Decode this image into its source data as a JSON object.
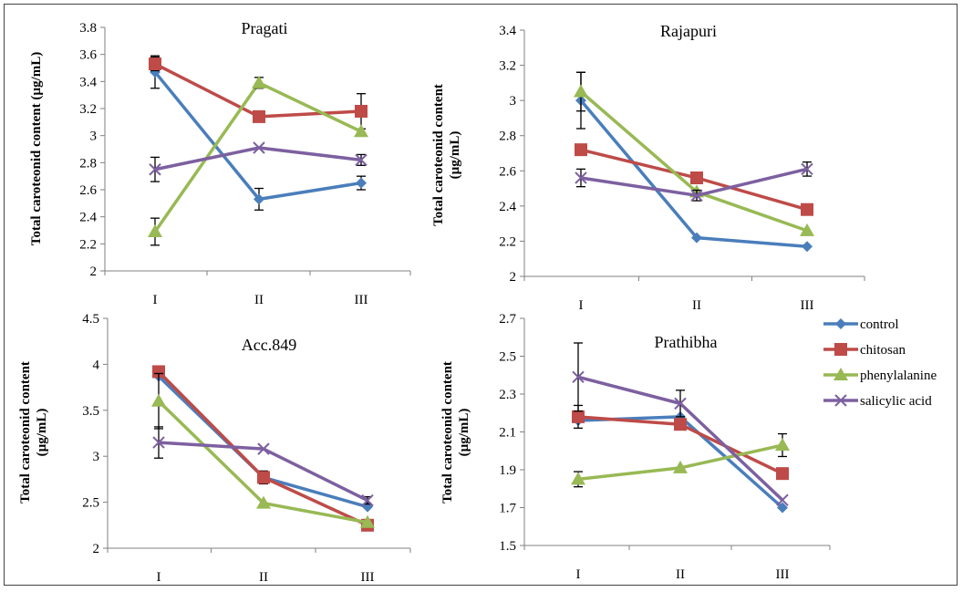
{
  "colors": {
    "control": "#4a7ebb",
    "chitosan": "#be4b48",
    "phenylalanine": "#98b954",
    "salicylic acid": "#7d60a0",
    "axis": "#808080",
    "errorbar": "#000000"
  },
  "legend": {
    "position": "right",
    "items": [
      "control",
      "chitosan",
      "phenylalanine",
      "salicylic acid"
    ]
  },
  "chart_data": [
    {
      "type": "line",
      "title": "Pragati",
      "ylabel": "Total caroteonid content (µg/mL)",
      "categories": [
        "I",
        "II",
        "III"
      ],
      "ylim": [
        2,
        3.8
      ],
      "yticks": [
        "2",
        "2.2",
        "2.4",
        "2.6",
        "2.8",
        "3",
        "3.2",
        "3.4",
        "3.6",
        "3.8"
      ],
      "series": [
        {
          "name": "control",
          "marker": "diamond",
          "values": [
            3.47,
            2.53,
            2.65
          ],
          "errors": [
            0.12,
            0.08,
            0.05
          ]
        },
        {
          "name": "chitosan",
          "marker": "square",
          "values": [
            3.53,
            3.14,
            3.18
          ],
          "errors": [
            0.05,
            0.0,
            0.13
          ]
        },
        {
          "name": "phenylalanine",
          "marker": "triangle",
          "values": [
            2.29,
            3.39,
            3.03
          ],
          "errors": [
            0.1,
            0.04,
            0.0
          ]
        },
        {
          "name": "salicylic acid",
          "marker": "x",
          "values": [
            2.75,
            2.91,
            2.82
          ],
          "errors": [
            0.09,
            0.0,
            0.04
          ]
        }
      ]
    },
    {
      "type": "line",
      "title": "Rajapuri",
      "ylabel": "Total caroteonid content (µg/mL)",
      "categories": [
        "I",
        "II",
        "III"
      ],
      "ylim": [
        2,
        3.4
      ],
      "yticks": [
        "2",
        "2.2",
        "2.4",
        "2.6",
        "2.8",
        "3",
        "3.2",
        "3.4"
      ],
      "series": [
        {
          "name": "control",
          "marker": "diamond",
          "values": [
            3.0,
            2.22,
            2.17
          ],
          "errors": [
            0.16,
            0.0,
            0.0
          ]
        },
        {
          "name": "chitosan",
          "marker": "square",
          "values": [
            2.72,
            2.56,
            2.38
          ],
          "errors": [
            0.0,
            0.0,
            0.0
          ]
        },
        {
          "name": "phenylalanine",
          "marker": "triangle",
          "values": [
            3.05,
            2.48,
            2.26
          ],
          "errors": [
            0.11,
            0.0,
            0.0
          ]
        },
        {
          "name": "salicylic acid",
          "marker": "x",
          "values": [
            2.56,
            2.46,
            2.61
          ],
          "errors": [
            0.05,
            0.03,
            0.04
          ]
        }
      ]
    },
    {
      "type": "line",
      "title": "Acc.849",
      "ylabel": "Total caroteonid content (µg/mL)",
      "categories": [
        "I",
        "II",
        "III"
      ],
      "ylim": [
        2,
        4.5
      ],
      "yticks": [
        "2",
        "2.5",
        "3",
        "3.5",
        "4",
        "4.5"
      ],
      "series": [
        {
          "name": "control",
          "marker": "diamond",
          "values": [
            3.87,
            2.77,
            2.45
          ],
          "errors": [
            0.0,
            0.07,
            0.0
          ]
        },
        {
          "name": "chitosan",
          "marker": "square",
          "values": [
            3.92,
            2.77,
            2.25
          ],
          "errors": [
            0.0,
            0.0,
            0.0
          ]
        },
        {
          "name": "phenylalanine",
          "marker": "triangle",
          "values": [
            3.6,
            2.49,
            2.28
          ],
          "errors": [
            0.3,
            0.0,
            0.0
          ]
        },
        {
          "name": "salicylic acid",
          "marker": "x",
          "values": [
            3.15,
            3.08,
            2.52
          ],
          "errors": [
            0.17,
            0.0,
            0.04
          ]
        }
      ]
    },
    {
      "type": "line",
      "title": "Prathibha",
      "ylabel": "Total caroteonid content (µg/mL)",
      "categories": [
        "I",
        "II",
        "III"
      ],
      "ylim": [
        1.5,
        2.7
      ],
      "yticks": [
        "1.5",
        "1.7",
        "1.9",
        "2.1",
        "2.3",
        "2.5",
        "2.7"
      ],
      "series": [
        {
          "name": "control",
          "marker": "diamond",
          "values": [
            2.16,
            2.18,
            1.7
          ],
          "errors": [
            0.0,
            0.0,
            0.0
          ]
        },
        {
          "name": "chitosan",
          "marker": "square",
          "values": [
            2.18,
            2.14,
            1.88
          ],
          "errors": [
            0.06,
            0.0,
            0.0
          ]
        },
        {
          "name": "phenylalanine",
          "marker": "triangle",
          "values": [
            1.85,
            1.91,
            2.03
          ],
          "errors": [
            0.04,
            0.0,
            0.06
          ]
        },
        {
          "name": "salicylic acid",
          "marker": "x",
          "values": [
            2.39,
            2.25,
            1.74
          ],
          "errors": [
            0.18,
            0.07,
            0.0
          ]
        }
      ]
    }
  ]
}
